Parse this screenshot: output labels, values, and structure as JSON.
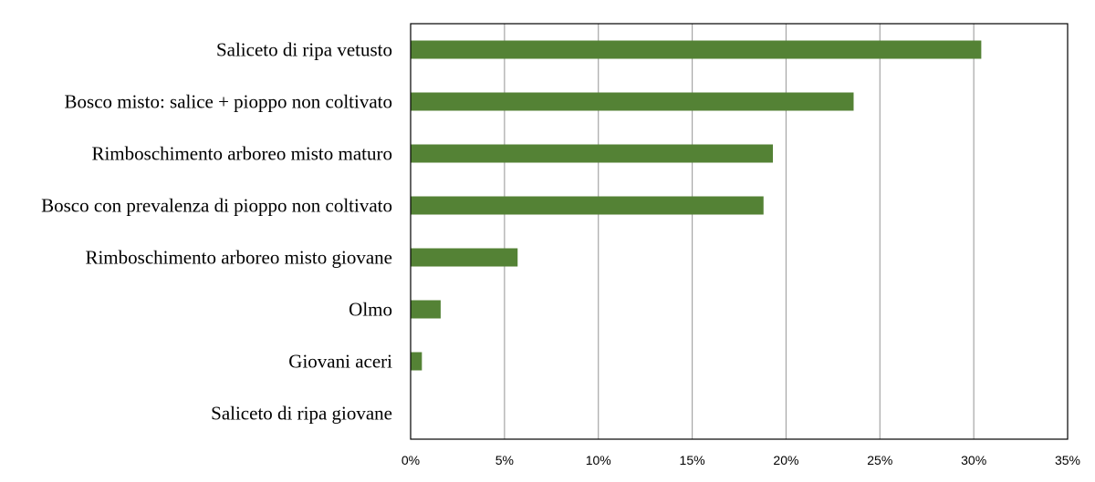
{
  "chart_data": {
    "type": "bar",
    "orientation": "horizontal",
    "categories": [
      "Saliceto di ripa vetusto",
      "Bosco misto: salice + pioppo non coltivato",
      "Rimboschimento arboreo misto maturo",
      "Bosco con prevalenza di pioppo non coltivato",
      "Rimboschimento arboreo misto giovane",
      "Olmo",
      "Giovani aceri",
      "Saliceto di ripa giovane"
    ],
    "values": [
      30.4,
      23.6,
      19.3,
      18.8,
      5.7,
      1.6,
      0.6,
      0
    ],
    "xlim": [
      0,
      35
    ],
    "xticks": [
      0,
      5,
      10,
      15,
      20,
      25,
      30,
      35
    ],
    "xtick_labels": [
      "0%",
      "5%",
      "10%",
      "15%",
      "20%",
      "25%",
      "30%",
      "35%"
    ],
    "title": "",
    "xlabel": "",
    "ylabel": "",
    "grid": "vertical",
    "legend": "none",
    "bar_color": "#548235"
  }
}
